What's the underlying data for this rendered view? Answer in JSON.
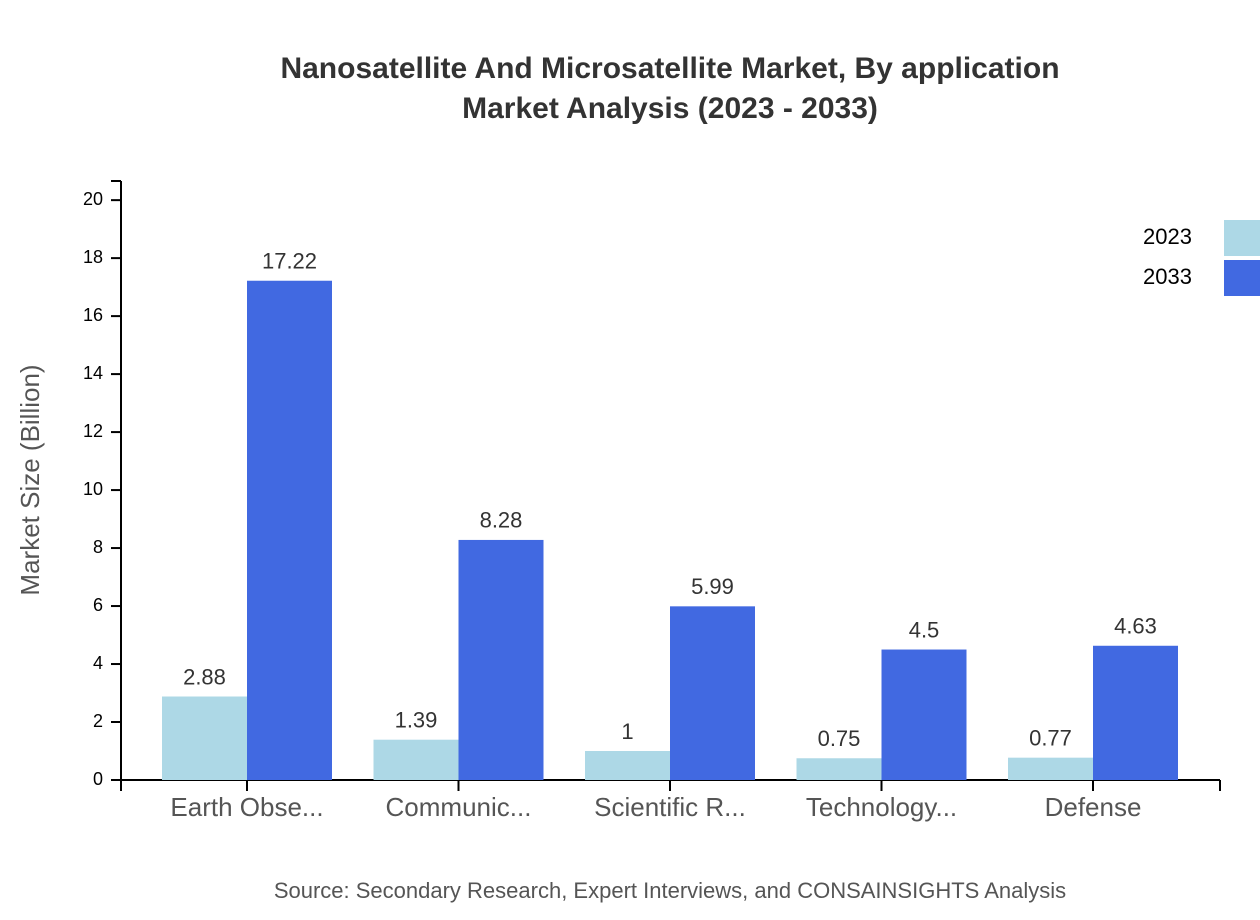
{
  "chart_data": {
    "type": "bar",
    "title": "Nanosatellite And Microsatellite Market, By application",
    "subtitle": "Market Analysis (2023 - 2033)",
    "y_label": "Market Size (Billion)",
    "source": "Source: Secondary Research, Expert Interviews, and CONSAINSIGHTS Analysis",
    "categories": [
      "Earth Obse...",
      "Communic...",
      "Scientific R...",
      "Technology...",
      "Defense"
    ],
    "series": [
      {
        "name": "2023",
        "color": "#add8e6",
        "values": [
          2.88,
          1.39,
          1,
          0.75,
          0.77
        ]
      },
      {
        "name": "2033",
        "color": "#4169e1",
        "values": [
          17.22,
          8.28,
          5.99,
          4.5,
          4.63
        ]
      }
    ],
    "ylim": [
      0,
      20.66
    ],
    "yticks": [
      0,
      2,
      4,
      6,
      8,
      10,
      12,
      14,
      16,
      18,
      20
    ],
    "legend": "top-right"
  }
}
